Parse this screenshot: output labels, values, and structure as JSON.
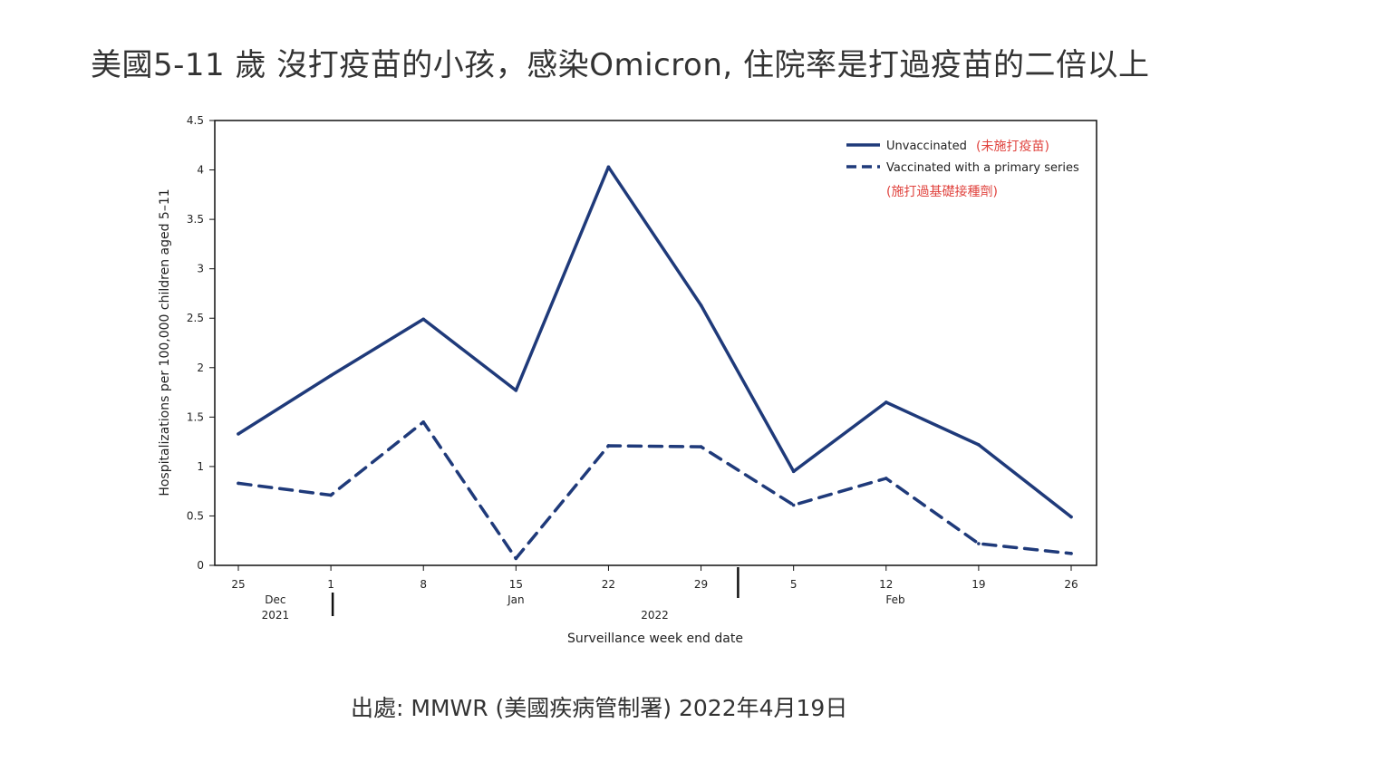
{
  "page": {
    "title": "美國5-11 歲 沒打疫苗的小孩，感染Omicron, 住院率是打過疫苗的二倍以上",
    "source": "出處: MMWR (美國疾病管制署) 2022年4月19日"
  },
  "chart_data": {
    "type": "line",
    "title": "",
    "xlabel": "Surveillance week end date",
    "ylabel": "Hospitalizations per 100,000 children aged 5–11",
    "ylim": [
      0,
      4.5
    ],
    "yticks": [
      0,
      0.5,
      1,
      1.5,
      2,
      2.5,
      3,
      3.5,
      4,
      4.5
    ],
    "ytick_labels": [
      "0",
      "0.5",
      "1",
      "1.5",
      "2",
      "2.5",
      "3",
      "3.5",
      "4",
      "4.5"
    ],
    "categories": [
      "25",
      "1",
      "8",
      "15",
      "22",
      "29",
      "5",
      "12",
      "19",
      "26"
    ],
    "month_labels": [
      {
        "label": "Dec",
        "at": 0.4
      },
      {
        "label": "2021",
        "at": 0.4
      },
      {
        "label": "Jan",
        "at": 3.0
      },
      {
        "label": "2022",
        "at": 4.5
      },
      {
        "label": "Feb",
        "at": 7.1
      }
    ],
    "year_separators": [
      1.0,
      5.4
    ],
    "grid": false,
    "legend_position": "top-right",
    "series": [
      {
        "name": "Unvaccinated",
        "note": "(未施打疫苗)",
        "style": "solid",
        "color": "#1f3a7a",
        "values": [
          1.33,
          1.92,
          2.49,
          1.77,
          4.03,
          2.63,
          0.95,
          1.65,
          1.22,
          0.49
        ]
      },
      {
        "name": "Vaccinated with a primary series",
        "note": "(施打過基礎接種劑)",
        "style": "dashed",
        "color": "#1f3a7a",
        "values": [
          0.83,
          0.71,
          1.45,
          0.07,
          1.21,
          1.2,
          0.61,
          0.88,
          0.22,
          0.12
        ]
      }
    ]
  }
}
